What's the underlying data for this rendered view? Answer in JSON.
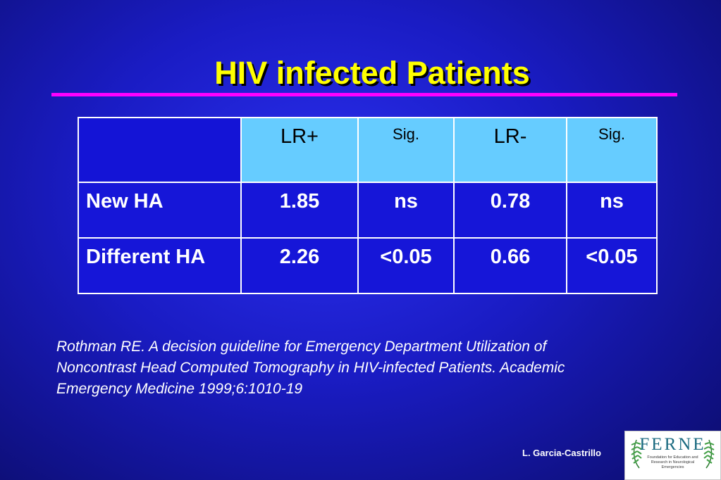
{
  "slide": {
    "title": "HIV infected Patients",
    "accent_color": "#ff00ff",
    "title_color": "#ffff00"
  },
  "table": {
    "headers": [
      "",
      "LR+",
      "Sig.",
      "LR-",
      "Sig."
    ],
    "rows": [
      [
        "New HA",
        "1.85",
        "ns",
        "0.78",
        "ns"
      ],
      [
        "Different HA",
        "2.26",
        "<0.05",
        "0.66",
        "<0.05"
      ]
    ]
  },
  "citation": {
    "text": "Rothman RE. A decision guideline for Emergency Department Utilization of Noncontrast Head Computed Tomography in HIV-infected Patients. Academic Emergency Medicine 1999;6:1010-19"
  },
  "footer": {
    "author": "L. Garcia-Castrillo",
    "logo_name": "FERNE",
    "logo_tagline": "Foundation for Education and Research in Neurological Emergencies"
  },
  "icons": {
    "logo_left": "leaf-icon",
    "logo_right": "leaf-icon"
  }
}
